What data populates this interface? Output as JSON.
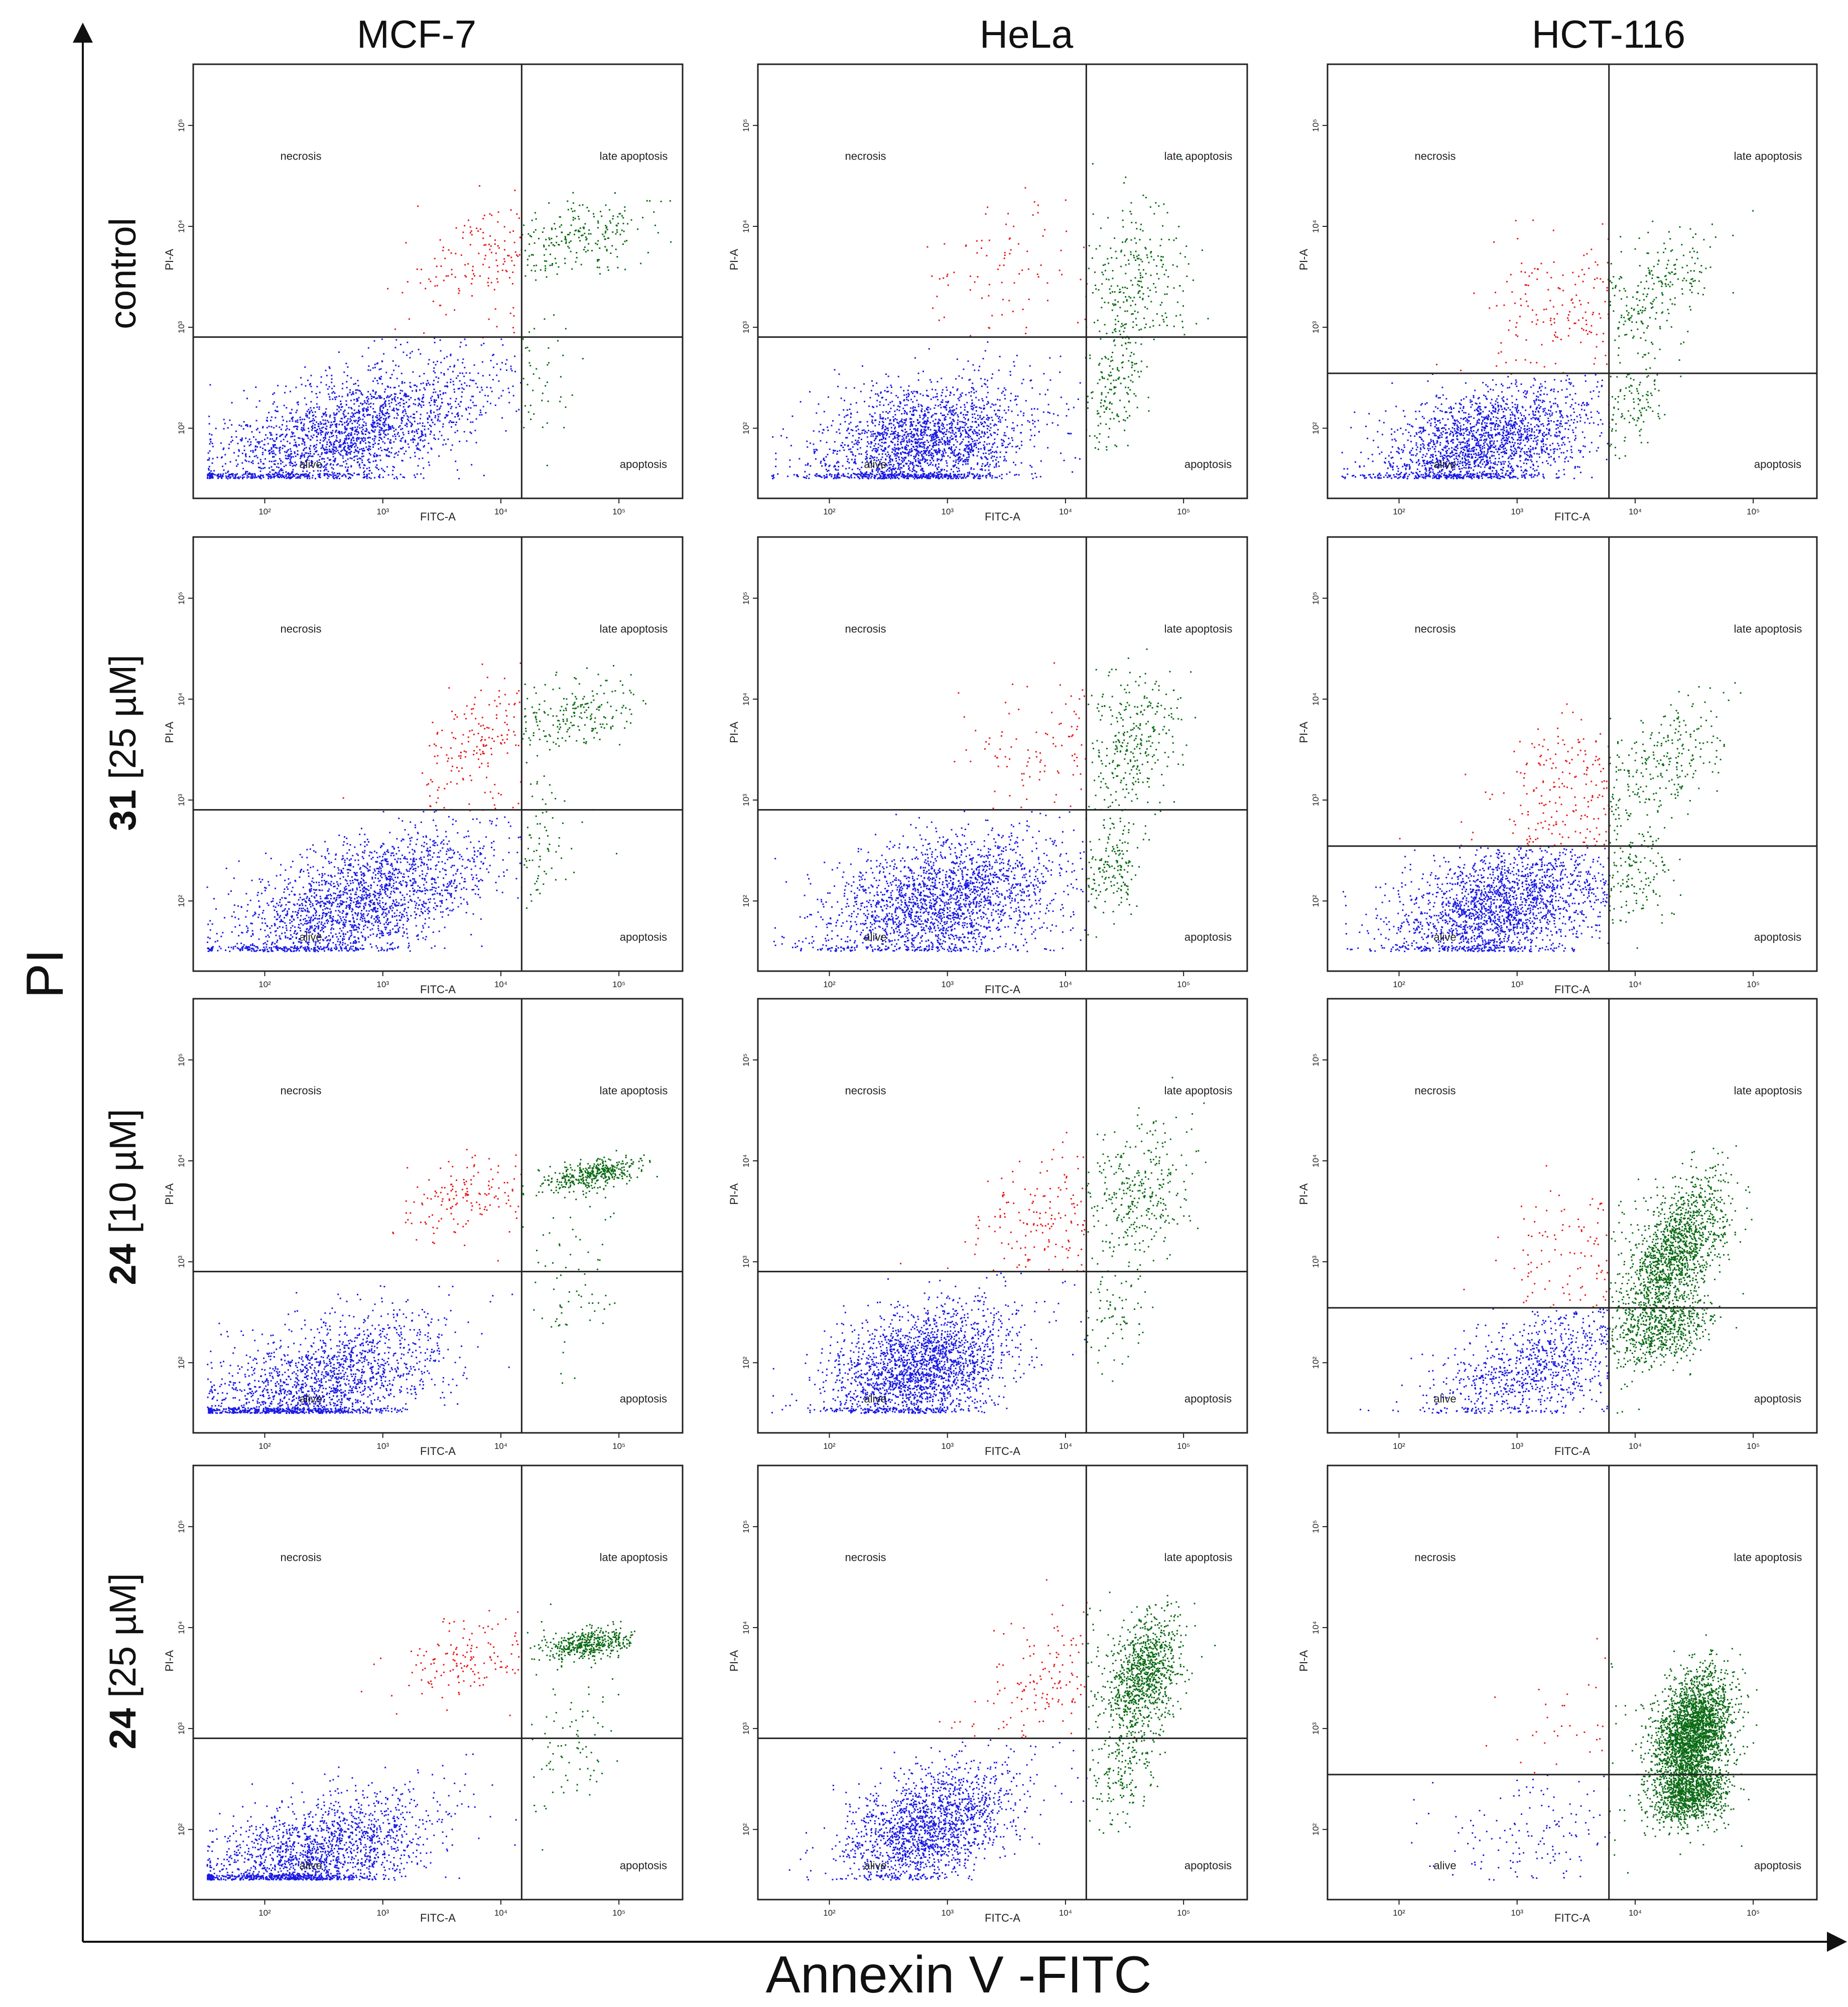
{
  "figure": {
    "y_axis_title": "PI",
    "x_axis_title": "Annexin V -FITC",
    "columns": [
      "MCF-7",
      "HeLa",
      "HCT-116"
    ],
    "rows": [
      {
        "compound": "",
        "condition": "control"
      },
      {
        "compound": "31",
        "condition": " [25 µM]"
      },
      {
        "compound": "24",
        "condition": " [10 µM]"
      },
      {
        "compound": "24",
        "condition": " [25 µM]"
      }
    ]
  },
  "chart_data": {
    "type": "scatter",
    "plot_kind": "flow cytometry quadrant dot plots (Annexin V-FITC / PI)",
    "x_axis_label": "FITC-A",
    "y_axis_label": "PI-A",
    "axis_scale": "log10",
    "xlim": [
      30,
      300000
    ],
    "ylim": [
      30,
      300000
    ],
    "tick_values": [
      100,
      1000,
      10000,
      100000
    ],
    "tick_labels": [
      "10²",
      "10³",
      "10⁴",
      "10⁵"
    ],
    "quadrants": {
      "upper_left": "necrosis",
      "upper_right": "late apoptosis",
      "lower_left": "alive",
      "lower_right": "apoptosis"
    },
    "colors": {
      "alive": "#1a1ae6",
      "necrosis": "#e61a1a",
      "apoptotic": "#0b6b14",
      "axis": "#222222"
    },
    "panels": [
      {
        "cell_line": "MCF-7",
        "treatment": "control",
        "gate_x": 15000,
        "gate_y": 800,
        "populations": [
          {
            "label": "alive",
            "n": 2200,
            "cx": 500,
            "cy": 90,
            "sx": 0.6,
            "sy": 0.36,
            "r": 0.6
          },
          {
            "label": "necrosis",
            "n": 140,
            "cx": 7000,
            "cy": 5000,
            "sx": 0.27,
            "sy": 0.3,
            "r": 0.3
          },
          {
            "label": "late apoptosis",
            "n": 220,
            "cx": 45000,
            "cy": 8000,
            "sx": 0.3,
            "sy": 0.17,
            "r": 0.4
          },
          {
            "label": "apoptosis",
            "n": 40,
            "cx": 20000,
            "cy": 300,
            "sx": 0.12,
            "sy": 0.3,
            "r": 0
          }
        ]
      },
      {
        "cell_line": "HeLa",
        "treatment": "control",
        "gate_x": 15000,
        "gate_y": 800,
        "populations": [
          {
            "label": "alive",
            "n": 2200,
            "cx": 600,
            "cy": 70,
            "sx": 0.45,
            "sy": 0.32,
            "r": 0.25
          },
          {
            "label": "necrosis",
            "n": 90,
            "cx": 4000,
            "cy": 4000,
            "sx": 0.45,
            "sy": 0.4,
            "r": 0.1
          },
          {
            "label": "late apoptosis",
            "n": 260,
            "cx": 40000,
            "cy": 3000,
            "sx": 0.22,
            "sy": 0.38,
            "r": 0.2
          },
          {
            "label": "apoptosis",
            "n": 160,
            "cx": 25000,
            "cy": 250,
            "sx": 0.13,
            "sy": 0.32,
            "r": 0.3
          }
        ]
      },
      {
        "cell_line": "HCT-116",
        "treatment": "control",
        "gate_x": 6000,
        "gate_y": 350,
        "populations": [
          {
            "label": "alive",
            "n": 2000,
            "cx": 500,
            "cy": 70,
            "sx": 0.45,
            "sy": 0.28,
            "r": 0.4
          },
          {
            "label": "necrosis",
            "n": 170,
            "cx": 2500,
            "cy": 1500,
            "sx": 0.35,
            "sy": 0.38,
            "r": 0.2
          },
          {
            "label": "late apoptosis",
            "n": 220,
            "cx": 15000,
            "cy": 2500,
            "sx": 0.25,
            "sy": 0.3,
            "r": 0.55
          },
          {
            "label": "apoptosis",
            "n": 90,
            "cx": 10000,
            "cy": 200,
            "sx": 0.15,
            "sy": 0.25,
            "r": 0.2
          }
        ]
      },
      {
        "cell_line": "MCF-7",
        "treatment": "31 [25 µM]",
        "gate_x": 15000,
        "gate_y": 800,
        "populations": [
          {
            "label": "alive",
            "n": 2100,
            "cx": 650,
            "cy": 100,
            "sx": 0.55,
            "sy": 0.36,
            "r": 0.6
          },
          {
            "label": "necrosis",
            "n": 150,
            "cx": 6000,
            "cy": 4000,
            "sx": 0.25,
            "sy": 0.3,
            "r": 0.3
          },
          {
            "label": "late apoptosis",
            "n": 200,
            "cx": 40000,
            "cy": 7000,
            "sx": 0.28,
            "sy": 0.18,
            "r": 0.3
          },
          {
            "label": "apoptosis",
            "n": 50,
            "cx": 22000,
            "cy": 300,
            "sx": 0.15,
            "sy": 0.3,
            "r": 0
          }
        ]
      },
      {
        "cell_line": "HeLa",
        "treatment": "31 [25 µM]",
        "gate_x": 15000,
        "gate_y": 800,
        "populations": [
          {
            "label": "alive",
            "n": 2100,
            "cx": 900,
            "cy": 100,
            "sx": 0.5,
            "sy": 0.32,
            "r": 0.3
          },
          {
            "label": "necrosis",
            "n": 110,
            "cx": 6000,
            "cy": 3000,
            "sx": 0.35,
            "sy": 0.35,
            "r": 0.2
          },
          {
            "label": "late apoptosis",
            "n": 280,
            "cx": 40000,
            "cy": 4000,
            "sx": 0.2,
            "sy": 0.35,
            "r": 0.2
          },
          {
            "label": "apoptosis",
            "n": 170,
            "cx": 25000,
            "cy": 250,
            "sx": 0.13,
            "sy": 0.3,
            "r": 0.3
          }
        ]
      },
      {
        "cell_line": "HCT-116",
        "treatment": "31 [25 µM]",
        "gate_x": 6000,
        "gate_y": 350,
        "populations": [
          {
            "label": "alive",
            "n": 2000,
            "cx": 700,
            "cy": 90,
            "sx": 0.45,
            "sy": 0.3,
            "r": 0.35
          },
          {
            "label": "necrosis",
            "n": 200,
            "cx": 2800,
            "cy": 1400,
            "sx": 0.33,
            "sy": 0.35,
            "r": 0.2
          },
          {
            "label": "late apoptosis",
            "n": 230,
            "cx": 18000,
            "cy": 2500,
            "sx": 0.25,
            "sy": 0.32,
            "r": 0.4
          },
          {
            "label": "apoptosis",
            "n": 110,
            "cx": 10000,
            "cy": 180,
            "sx": 0.18,
            "sy": 0.25,
            "r": 0.2
          }
        ]
      },
      {
        "cell_line": "MCF-7",
        "treatment": "24 [10 µM]",
        "gate_x": 15000,
        "gate_y": 800,
        "populations": [
          {
            "label": "alive",
            "n": 1800,
            "cx": 300,
            "cy": 60,
            "sx": 0.5,
            "sy": 0.35,
            "r": 0.5
          },
          {
            "label": "necrosis",
            "n": 150,
            "cx": 5000,
            "cy": 4500,
            "sx": 0.3,
            "sy": 0.2,
            "r": 0.3
          },
          {
            "label": "late apoptosis",
            "n": 380,
            "cx": 60000,
            "cy": 7500,
            "sx": 0.2,
            "sy": 0.08,
            "r": 0.4
          },
          {
            "label": "apoptosis",
            "n": 70,
            "cx": 40000,
            "cy": 700,
            "sx": 0.2,
            "sy": 0.35,
            "r": 0.3
          }
        ]
      },
      {
        "cell_line": "HeLa",
        "treatment": "24 [10 µM]",
        "gate_x": 15000,
        "gate_y": 800,
        "populations": [
          {
            "label": "alive",
            "n": 2100,
            "cx": 600,
            "cy": 90,
            "sx": 0.38,
            "sy": 0.3,
            "r": 0.3
          },
          {
            "label": "necrosis",
            "n": 170,
            "cx": 6000,
            "cy": 2500,
            "sx": 0.35,
            "sy": 0.35,
            "r": 0.2
          },
          {
            "label": "late apoptosis",
            "n": 300,
            "cx": 40000,
            "cy": 5000,
            "sx": 0.22,
            "sy": 0.35,
            "r": 0.2
          },
          {
            "label": "apoptosis",
            "n": 80,
            "cx": 25000,
            "cy": 350,
            "sx": 0.15,
            "sy": 0.3,
            "r": 0.2
          }
        ]
      },
      {
        "cell_line": "HCT-116",
        "treatment": "24 [10 µM]",
        "gate_x": 6000,
        "gate_y": 350,
        "populations": [
          {
            "label": "alive",
            "n": 900,
            "cx": 1500,
            "cy": 90,
            "sx": 0.45,
            "sy": 0.3,
            "r": 0.5
          },
          {
            "label": "necrosis",
            "n": 100,
            "cx": 3000,
            "cy": 1500,
            "sx": 0.3,
            "sy": 0.3,
            "r": 0.2
          },
          {
            "label": "late apoptosis",
            "n": 1400,
            "cx": 22000,
            "cy": 1300,
            "sx": 0.22,
            "sy": 0.38,
            "r": 0.6
          },
          {
            "label": "apoptosis",
            "n": 500,
            "cx": 18000,
            "cy": 220,
            "sx": 0.2,
            "sy": 0.18,
            "r": 0.3
          }
        ]
      },
      {
        "cell_line": "MCF-7",
        "treatment": "24 [25 µM]",
        "gate_x": 15000,
        "gate_y": 800,
        "populations": [
          {
            "label": "alive",
            "n": 1800,
            "cx": 250,
            "cy": 55,
            "sx": 0.5,
            "sy": 0.3,
            "r": 0.5
          },
          {
            "label": "necrosis",
            "n": 150,
            "cx": 5000,
            "cy": 5000,
            "sx": 0.3,
            "sy": 0.2,
            "r": 0.3
          },
          {
            "label": "late apoptosis",
            "n": 420,
            "cx": 55000,
            "cy": 7000,
            "sx": 0.18,
            "sy": 0.08,
            "r": 0.3
          },
          {
            "label": "apoptosis",
            "n": 80,
            "cx": 40000,
            "cy": 600,
            "sx": 0.2,
            "sy": 0.35,
            "r": 0.3
          }
        ]
      },
      {
        "cell_line": "HeLa",
        "treatment": "24 [25 µM]",
        "gate_x": 15000,
        "gate_y": 800,
        "populations": [
          {
            "label": "alive",
            "n": 1700,
            "cx": 700,
            "cy": 110,
            "sx": 0.35,
            "sy": 0.3,
            "r": 0.4
          },
          {
            "label": "necrosis",
            "n": 150,
            "cx": 7000,
            "cy": 3000,
            "sx": 0.3,
            "sy": 0.35,
            "r": 0.2
          },
          {
            "label": "late apoptosis",
            "n": 950,
            "cx": 45000,
            "cy": 3500,
            "sx": 0.16,
            "sy": 0.3,
            "r": 0.35
          },
          {
            "label": "apoptosis",
            "n": 180,
            "cx": 30000,
            "cy": 400,
            "sx": 0.15,
            "sy": 0.28,
            "r": 0.3
          }
        ]
      },
      {
        "cell_line": "HCT-116",
        "treatment": "24 [25 µM]",
        "gate_x": 6000,
        "gate_y": 350,
        "populations": [
          {
            "label": "alive",
            "n": 150,
            "cx": 1500,
            "cy": 100,
            "sx": 0.45,
            "sy": 0.3,
            "r": 0.3
          },
          {
            "label": "necrosis",
            "n": 40,
            "cx": 3000,
            "cy": 1500,
            "sx": 0.3,
            "sy": 0.3,
            "r": 0.2
          },
          {
            "label": "late apoptosis",
            "n": 2600,
            "cx": 30000,
            "cy": 900,
            "sx": 0.16,
            "sy": 0.3,
            "r": 0.3
          },
          {
            "label": "apoptosis",
            "n": 900,
            "cx": 30000,
            "cy": 220,
            "sx": 0.16,
            "sy": 0.15,
            "r": 0.2
          }
        ]
      }
    ]
  }
}
